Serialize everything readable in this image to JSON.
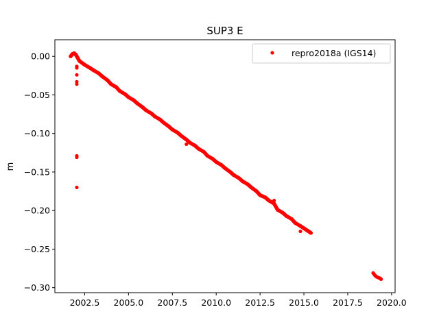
{
  "chart_data": {
    "type": "scatter",
    "title": "SUP3 E",
    "xlabel": "",
    "ylabel": "m",
    "xlim": [
      2000.8,
      2020.2
    ],
    "ylim": [
      -0.3065,
      0.0215
    ],
    "xticks": [
      2002.5,
      2005.0,
      2007.5,
      2010.0,
      2012.5,
      2015.0,
      2017.5,
      2020.0
    ],
    "xtick_labels": [
      "2002.5",
      "2005.0",
      "2007.5",
      "2010.0",
      "2012.5",
      "2015.0",
      "2017.5",
      "2020.0"
    ],
    "yticks": [
      0.0,
      -0.05,
      -0.1,
      -0.15,
      -0.2,
      -0.25,
      -0.3
    ],
    "ytick_labels": [
      "0.00",
      "−0.05",
      "−0.10",
      "−0.15",
      "−0.20",
      "−0.25",
      "−0.30"
    ],
    "legend": {
      "position": "top-right"
    },
    "grid": false,
    "series": [
      {
        "name": "repro2018a (IGS14)",
        "color": "#ff0000",
        "marker": "circle",
        "x": [
          2001.7,
          2001.8,
          2001.9,
          2002.0,
          2002.2,
          2002.5,
          2002.8,
          2003.0,
          2003.3,
          2003.5,
          2003.8,
          2004.0,
          2004.3,
          2004.5,
          2004.8,
          2005.0,
          2005.3,
          2005.5,
          2005.8,
          2006.0,
          2006.3,
          2006.5,
          2006.8,
          2007.0,
          2007.3,
          2007.5,
          2007.8,
          2008.0,
          2008.3,
          2008.5,
          2008.8,
          2009.0,
          2009.3,
          2009.5,
          2009.8,
          2010.0,
          2010.3,
          2010.5,
          2010.8,
          2011.0,
          2011.3,
          2011.5,
          2011.8,
          2012.0,
          2012.3,
          2012.5,
          2012.8,
          2013.0,
          2013.3,
          2013.5,
          2013.8,
          2014.0,
          2014.3,
          2014.5,
          2014.8,
          2015.0,
          2015.2,
          2015.4,
          2002.05,
          2002.05,
          2002.05,
          2002.05,
          2002.05,
          2002.05,
          2002.05,
          2002.05,
          2008.3,
          2013.3,
          2014.8,
          2018.95,
          2019.05,
          2019.15,
          2019.25,
          2019.35,
          2019.4
        ],
        "y": [
          0.0,
          0.003,
          0.004,
          0.002,
          -0.006,
          -0.011,
          -0.015,
          -0.018,
          -0.022,
          -0.026,
          -0.031,
          -0.036,
          -0.04,
          -0.045,
          -0.049,
          -0.053,
          -0.057,
          -0.061,
          -0.066,
          -0.07,
          -0.074,
          -0.078,
          -0.082,
          -0.086,
          -0.091,
          -0.095,
          -0.099,
          -0.103,
          -0.108,
          -0.112,
          -0.116,
          -0.12,
          -0.124,
          -0.129,
          -0.133,
          -0.137,
          -0.141,
          -0.145,
          -0.15,
          -0.154,
          -0.158,
          -0.162,
          -0.166,
          -0.17,
          -0.175,
          -0.18,
          -0.183,
          -0.187,
          -0.191,
          -0.199,
          -0.203,
          -0.207,
          -0.211,
          -0.216,
          -0.22,
          -0.223,
          -0.226,
          -0.229,
          -0.013,
          -0.015,
          -0.024,
          -0.033,
          -0.036,
          -0.129,
          -0.131,
          -0.17,
          -0.114,
          -0.187,
          -0.227,
          -0.281,
          -0.284,
          -0.286,
          -0.287,
          -0.288,
          -0.289
        ]
      }
    ]
  }
}
